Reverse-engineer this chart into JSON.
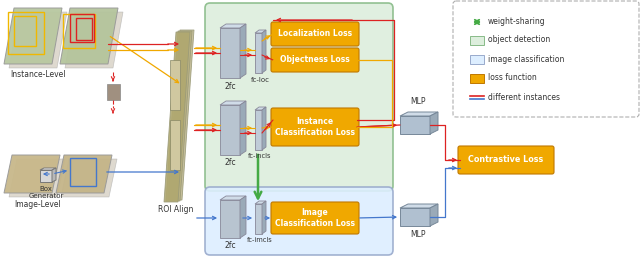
{
  "figsize": [
    6.4,
    2.58
  ],
  "dpi": 100,
  "bg_color": "#ffffff",
  "green_box_color": "#ddeedd",
  "green_box_border": "#88bb88",
  "blue_box_color": "#ddeeff",
  "blue_box_border": "#99aacc",
  "orange_color": "#f0a800",
  "orange_border": "#c07800",
  "red_color": "#dd2222",
  "orange_arrow": "#f0a800",
  "blue_color": "#4477cc",
  "green_arrow": "#44aa44",
  "gray_block": "#b8c4d0",
  "gray_block_top": "#d0dce8",
  "gray_block_side": "#9aaab8",
  "mlp_color": "#b0c0d0",
  "instance_level_label": "Instance-Level",
  "image_level_label": "Image-Level",
  "roi_align_label": "ROI Align",
  "box_gen_label": "Box\nGenerator",
  "contrastive_label": "Contrastive Loss",
  "legend_labels": [
    "weight-sharing",
    "object detection",
    "image classification",
    "loss function",
    "different instances"
  ]
}
